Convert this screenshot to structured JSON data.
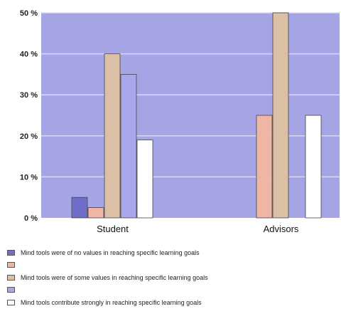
{
  "chart_data": {
    "type": "bar",
    "categories": [
      "Student",
      "Advisors"
    ],
    "series": [
      {
        "name": "Mind tools were of no values in reaching specific learning goals",
        "values": [
          5,
          0
        ],
        "color": "#6f6ec9"
      },
      {
        "name": "",
        "values": [
          2.5,
          25
        ],
        "color": "#f0b6a4"
      },
      {
        "name": "Mind tools were of some values in reaching specific learning goals",
        "values": [
          40,
          50
        ],
        "color": "#dcc0a6"
      },
      {
        "name": "",
        "values": [
          35,
          0
        ],
        "color": "#a7a7ea"
      },
      {
        "name": "Mind tools contribute strongly in reaching specific learning goals",
        "values": [
          19,
          25
        ],
        "color": "#ffffff"
      }
    ],
    "ylim": [
      0,
      50
    ],
    "yticks": [
      "0 %",
      "10 %",
      "20 %",
      "30 %",
      "40 %",
      "50 %"
    ],
    "grid": true,
    "legend_position": "bottom",
    "plot_background": "#a5a5e6",
    "grid_color": "#d9d9f6"
  },
  "legend": [
    {
      "label": "Mind tools were of no values in reaching specific learning goals",
      "color": "#6f6ec9"
    },
    {
      "label": "",
      "color": "#f0b6a4"
    },
    {
      "label": "Mind tools were of some values in reaching specific learning goals",
      "color": "#dcc0a6"
    },
    {
      "label": "",
      "color": "#a7a7ea"
    },
    {
      "label": "Mind tools contribute strongly in reaching specific learning goals",
      "color": "#ffffff"
    }
  ]
}
